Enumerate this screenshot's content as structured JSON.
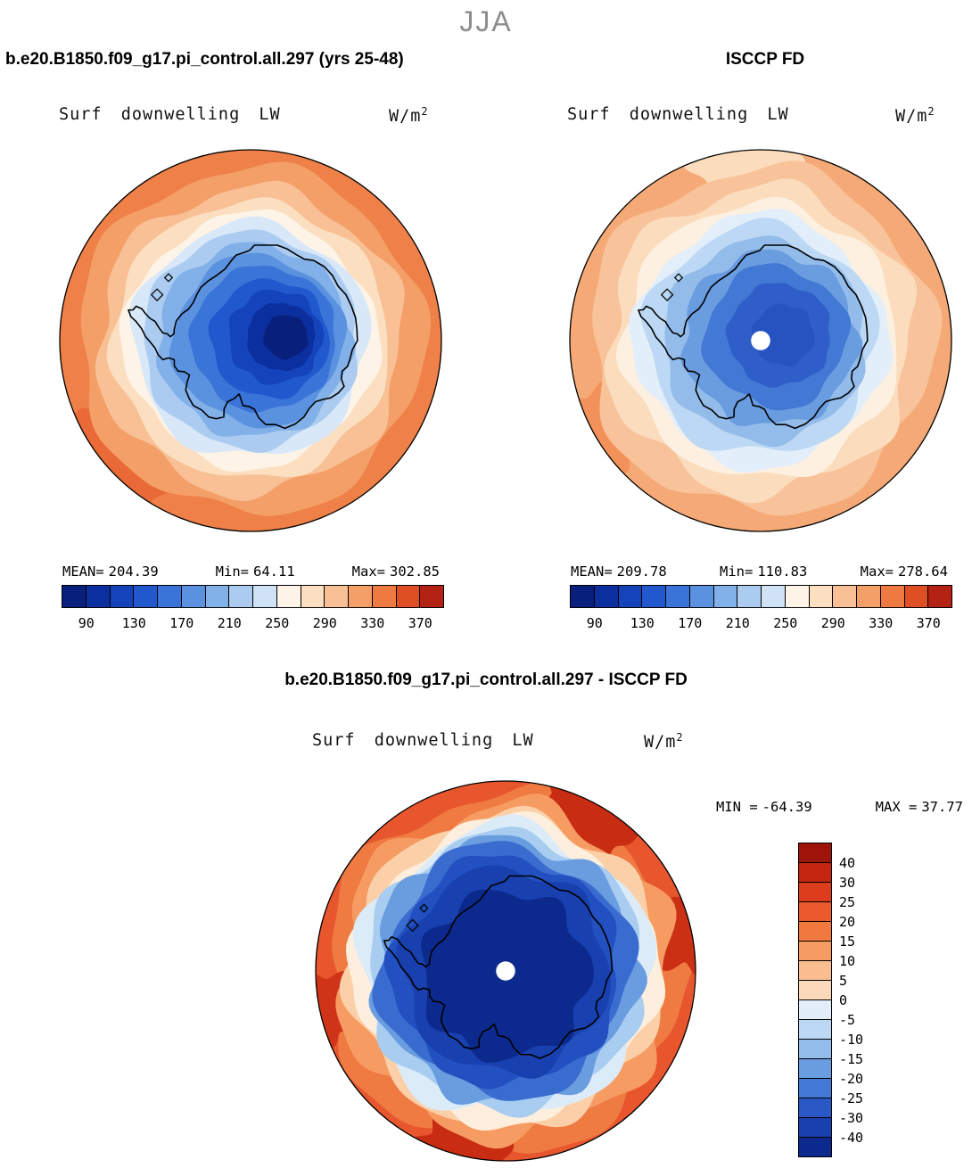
{
  "page": {
    "season_title": "JJA"
  },
  "model_panel": {
    "title": "b.e20.B1850.f09_g17.pi_control.all.297 (yrs 25-48)",
    "field": "Surf downwelling LW",
    "units_base": "W/m",
    "units_exp": "2",
    "stats": {
      "mean_label": "MEAN=",
      "mean": "204.39",
      "min_label": "Min=",
      "min": "64.11",
      "max_label": "Max=",
      "max": "302.85"
    }
  },
  "obs_panel": {
    "title": "ISCCP FD",
    "field": "Surf downwelling LW",
    "units_base": "W/m",
    "units_exp": "2",
    "stats": {
      "mean_label": "MEAN=",
      "mean": "209.78",
      "min_label": "Min=",
      "min": "110.83",
      "max_label": "Max=",
      "max": "278.64"
    }
  },
  "diff_panel": {
    "title": "b.e20.B1850.f09_g17.pi_control.all.297 - ISCCP FD",
    "field": "Surf downwelling LW",
    "units_base": "W/m",
    "units_exp": "2",
    "stats": {
      "min_label": "MIN =",
      "min": "-64.39",
      "max_label": "MAX =",
      "max": "37.77"
    }
  },
  "colorbar_abs": {
    "ticks": [
      "90",
      "130",
      "170",
      "210",
      "250",
      "290",
      "330",
      "370"
    ],
    "colors": [
      "#08207c",
      "#0b2f9e",
      "#1443bb",
      "#2158cd",
      "#3a74d8",
      "#5b92e0",
      "#82b0e8",
      "#abcbf0",
      "#cfe2f6",
      "#fdf3e7",
      "#fbdfc0",
      "#f8c094",
      "#f49e68",
      "#ee7a42",
      "#df4f24",
      "#b42214"
    ]
  },
  "colorbar_diff": {
    "ticks": [
      "40",
      "30",
      "25",
      "20",
      "15",
      "10",
      "5",
      "0",
      "-5",
      "-10",
      "-15",
      "-20",
      "-25",
      "-30",
      "-40"
    ],
    "colors": [
      "#9e1408",
      "#c42611",
      "#dc3d1d",
      "#ea5a2c",
      "#f1793f",
      "#f69b62",
      "#f9bd90",
      "#fcd9ba",
      "#e2eefa",
      "#bcd8f4",
      "#93bceb",
      "#6a9ce0",
      "#4378d4",
      "#2a58c4",
      "#1840ae",
      "#0c2a8e"
    ]
  },
  "chart_data": [
    {
      "type": "heatmap",
      "panel": "model",
      "title": "b.e20.B1850.f09_g17.pi_control.all.297 (yrs 25-48)",
      "variable": "Surf downwelling LW",
      "units": "W/m^2",
      "season": "JJA",
      "projection": "south-polar-stereographic",
      "mean": 204.39,
      "min": 64.11,
      "max": 302.85,
      "colorbar_ticks": [
        90,
        130,
        170,
        210,
        250,
        290,
        330,
        370
      ],
      "legend_position": "below",
      "description": "Antarctic map: deep blue minimum over East Antarctic interior, orange maximum over surrounding Southern Ocean"
    },
    {
      "type": "heatmap",
      "panel": "observations",
      "title": "ISCCP FD",
      "variable": "Surf downwelling LW",
      "units": "W/m^2",
      "season": "JJA",
      "projection": "south-polar-stereographic",
      "mean": 209.78,
      "min": 110.83,
      "max": 278.64,
      "colorbar_ticks": [
        90,
        130,
        170,
        210,
        250,
        290,
        330,
        370
      ],
      "legend_position": "below",
      "description": "Antarctic map: moderate blues over continent with white polar data hole, pale orange over ocean"
    },
    {
      "type": "heatmap",
      "panel": "difference",
      "title": "b.e20.B1850.f09_g17.pi_control.all.297 - ISCCP FD",
      "variable": "Surf downwelling LW",
      "units": "W/m^2",
      "season": "JJA",
      "projection": "south-polar-stereographic",
      "min": -64.39,
      "max": 37.77,
      "colorbar_ticks": [
        40,
        30,
        25,
        20,
        15,
        10,
        5,
        0,
        -5,
        -10,
        -15,
        -20,
        -25,
        -30,
        -40
      ],
      "legend_position": "right",
      "description": "Difference map: strong negative (deep blue) over Antarctic continent, positive (red/orange) ring over surrounding ocean, white polar data hole"
    }
  ],
  "render": {
    "maps": [
      {
        "target": "model-map-svg",
        "amp": 0.032,
        "after": 0,
        "pole_hole": false,
        "bands": [
          {
            "f": 1.0,
            "c": "#ef8048",
            "w": 0
          },
          {
            "f": 0.905,
            "c": "#f49e68"
          },
          {
            "f": 0.8,
            "c": "#f8c094"
          },
          {
            "f": 0.725,
            "c": "#fbdfc0"
          },
          {
            "f": 0.66,
            "c": "#fdf3e7"
          },
          {
            "f": 0.615,
            "c": "#d8e8f8"
          },
          {
            "f": 0.565,
            "c": "#abcbf0"
          },
          {
            "f": 0.505,
            "c": "#82b0e8",
            "dx": 0.02
          },
          {
            "f": 0.445,
            "c": "#5b92e0",
            "dx": 0.04
          },
          {
            "f": 0.38,
            "c": "#3a74d8",
            "dx": 0.07,
            "dy": -0.01
          },
          {
            "f": 0.31,
            "c": "#2158cd",
            "dx": 0.1,
            "dy": -0.01
          },
          {
            "f": 0.245,
            "c": "#1443bb",
            "dx": 0.13,
            "dy": -0.02
          },
          {
            "f": 0.18,
            "c": "#0b2f9e",
            "dx": 0.16,
            "dy": -0.02
          },
          {
            "f": 0.115,
            "c": "#08207c",
            "dx": 0.185,
            "dy": -0.02
          }
        ],
        "blobs": [
          {
            "a": 138,
            "s": 0.3,
            "c": "#e96a36"
          }
        ]
      },
      {
        "target": "obs-map-svg",
        "amp": 0.04,
        "after": 0,
        "pole_hole": true,
        "bands": [
          {
            "f": 1.0,
            "c": "#f5a977",
            "w": 0
          },
          {
            "f": 0.9,
            "c": "#f8c39a"
          },
          {
            "f": 0.8,
            "c": "#fbdcbd"
          },
          {
            "f": 0.72,
            "c": "#fdf0e0"
          },
          {
            "f": 0.655,
            "c": "#e2eefa"
          },
          {
            "f": 0.6,
            "c": "#bcd8f4"
          },
          {
            "f": 0.53,
            "c": "#93bceb",
            "dx": 0.02
          },
          {
            "f": 0.455,
            "c": "#6a9ce0",
            "dx": 0.05,
            "dy": -0.01
          },
          {
            "f": 0.37,
            "c": "#4378d4",
            "dx": 0.08,
            "dy": -0.02
          },
          {
            "f": 0.27,
            "c": "#2f5ec8",
            "dx": 0.1,
            "dy": -0.03
          },
          {
            "f": 0.16,
            "c": "#2553c0",
            "dx": 0.12,
            "dy": -0.03
          }
        ],
        "blobs": [
          {
            "a": -95,
            "s": 0.27,
            "c": "#fbdcbd"
          },
          {
            "a": 150,
            "s": 0.24,
            "c": "#f2925a"
          }
        ]
      },
      {
        "target": "diff-map-svg",
        "amp": 0.05,
        "after": 1,
        "pole_hole": true,
        "bands": [
          {
            "f": 1.0,
            "c": "#e8562e",
            "w": 0
          },
          {
            "f": 0.935,
            "c": "#ef7a42"
          },
          {
            "f": 0.865,
            "c": "#f69b62"
          },
          {
            "f": 0.82,
            "c": "#fbd0a8"
          },
          {
            "f": 0.785,
            "c": "#fdeedd"
          },
          {
            "f": 0.755,
            "c": "#dcebf8"
          },
          {
            "f": 0.725,
            "c": "#a8cdf0"
          },
          {
            "f": 0.69,
            "c": "#6a9ce0"
          },
          {
            "f": 0.65,
            "c": "#3a6cd0"
          },
          {
            "f": 0.6,
            "c": "#2250c0"
          },
          {
            "f": 0.54,
            "c": "#1840ae"
          },
          {
            "f": 0.44,
            "c": "#0c2a8e",
            "dy": 0.02
          }
        ],
        "blobs": [
          {
            "a": -62,
            "s": 0.3,
            "c": "#c82c12"
          },
          {
            "a": -12,
            "s": 0.22,
            "c": "#cc3014"
          },
          {
            "a": 103,
            "s": 0.26,
            "c": "#c82c12"
          },
          {
            "a": 168,
            "s": 0.2,
            "c": "#d03418"
          }
        ]
      }
    ]
  }
}
